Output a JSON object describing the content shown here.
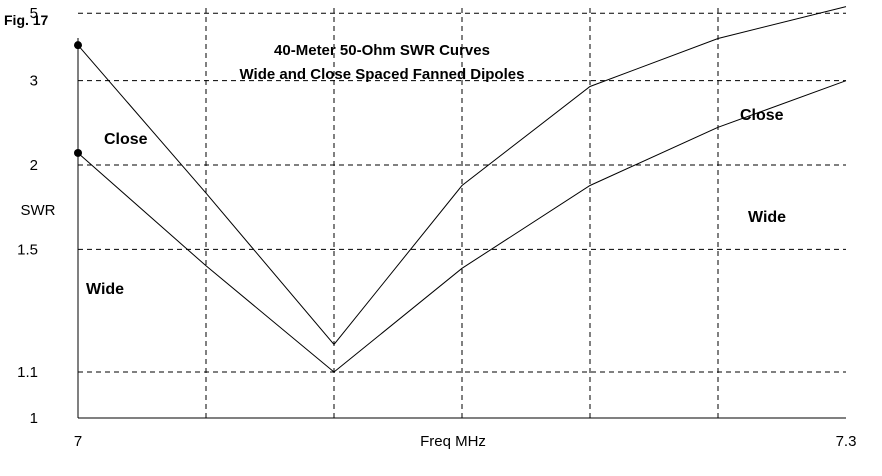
{
  "figure_label": "Fig. 17",
  "chart_data": {
    "type": "line",
    "title": "40-Meter 50-Ohm SWR Curves",
    "subtitle": "Wide and Close Spaced Fanned Dipoles",
    "xlabel": "Freq MHz",
    "ylabel": "SWR",
    "xlim": [
      7.0,
      7.3
    ],
    "ylim": [
      1.0,
      5.5
    ],
    "y_scale": "reciprocal",
    "x_tick_labels": [
      {
        "value": 7.0,
        "label": "7"
      },
      {
        "value": 7.3,
        "label": "7.3"
      }
    ],
    "y_tick_labels": [
      {
        "value": 1.0,
        "label": "1"
      },
      {
        "value": 1.1,
        "label": "1.1"
      },
      {
        "value": 1.5,
        "label": "1.5"
      },
      {
        "value": 2.0,
        "label": "2"
      },
      {
        "value": 3.0,
        "label": "3"
      },
      {
        "value": 5.0,
        "label": "5"
      }
    ],
    "x_gridlines": [
      7.05,
      7.1,
      7.15,
      7.2,
      7.25
    ],
    "y_gridlines": [
      1.1,
      1.5,
      2.0,
      3.0,
      5.0
    ],
    "grid": true,
    "series": [
      {
        "name": "Close",
        "x": [
          7.0,
          7.05,
          7.1,
          7.15,
          7.2,
          7.25,
          7.3
        ],
        "y": [
          3.8,
          1.8,
          1.17,
          1.85,
          2.9,
          4.0,
          5.35
        ]
      },
      {
        "name": "Wide",
        "x": [
          7.0,
          7.05,
          7.1,
          7.15,
          7.2,
          7.25,
          7.3
        ],
        "y": [
          2.1,
          1.43,
          1.1,
          1.42,
          1.85,
          2.35,
          3.0
        ]
      }
    ],
    "colors": {
      "line": "#000000",
      "grid": "#000000",
      "background": "#ffffff"
    }
  }
}
